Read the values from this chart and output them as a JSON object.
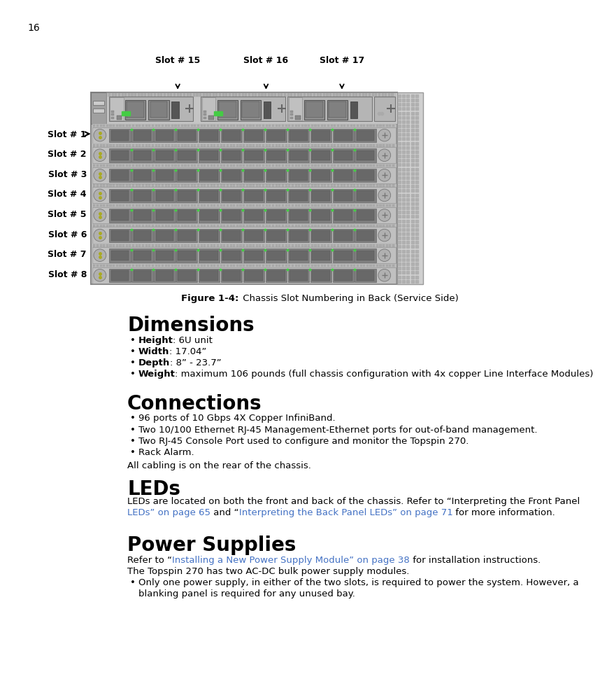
{
  "page_number": "16",
  "background_color": "#ffffff",
  "text_color": "#000000",
  "link_color": "#4472c4",
  "figcaption_bold": "Figure 1-4:",
  "figcaption_rest": " Chassis Slot Numbering in Back (Service Side)",
  "slot_labels_top": [
    "Slot # 15",
    "Slot # 16",
    "Slot # 17"
  ],
  "slot_labels_left": [
    "Slot # 1",
    "Slot # 2",
    "Slot # 3",
    "Slot # 4",
    "Slot # 5",
    "Slot # 6",
    "Slot # 7",
    "Slot # 8"
  ],
  "section_dimensions_title": "Dimensions",
  "section_dimensions_bullets": [
    [
      "Height",
      ": 6U unit"
    ],
    [
      "Width",
      ": 17.04”"
    ],
    [
      "Depth",
      ": 8” - 23.7”"
    ],
    [
      "Weight",
      ": maximum 106 pounds (full chassis configuration with 4x copper Line Interface Modules)"
    ]
  ],
  "section_connections_title": "Connections",
  "section_connections_bullets": [
    "96 ports of 10 Gbps 4X Copper InfiniBand.",
    "Two 10/100 Ethernet RJ-45 Management-Ethernet ports for out-of-band management.",
    "Two RJ-45 Console Port used to configure and monitor the Topspin 270.",
    "Rack Alarm."
  ],
  "connections_footer": "All cabling is on the rear of the chassis.",
  "section_leds_title": "LEDs",
  "leds_line1": "LEDs are located on both the front and back of the chassis. Refer to “Interpreting the Front Panel",
  "leds_line2_link": "LEDs” on page 65",
  "leds_line2_mid": " and “",
  "leds_line2_link2": "Interpreting the Back Panel LEDs” on page 71",
  "leds_line2_end": " for more information.",
  "section_power_title": "Power Supplies",
  "power_line1_pre": "Refer to “",
  "power_line1_link": "Installing a New Power Supply Module” on page 38",
  "power_line1_end": " for installation instructions.",
  "power_line2": "The Topspin 270 has two AC-DC bulk power supply modules.",
  "power_bullet_line1": "Only one power supply, in either of the two slots, is required to power the system. However, a",
  "power_bullet_line2": "blanking panel is required for any unused bay.",
  "chassis_color": "#c8c8c8",
  "chassis_border": "#888888",
  "mgmt_color": "#b8b8b8",
  "slot_color": "#c0c0c0",
  "port_color": "#808080",
  "port_inner": "#686868",
  "dot_panel_color": "#d0d0d0",
  "green_led": "#44cc44",
  "yellow_led": "#aaaa22"
}
